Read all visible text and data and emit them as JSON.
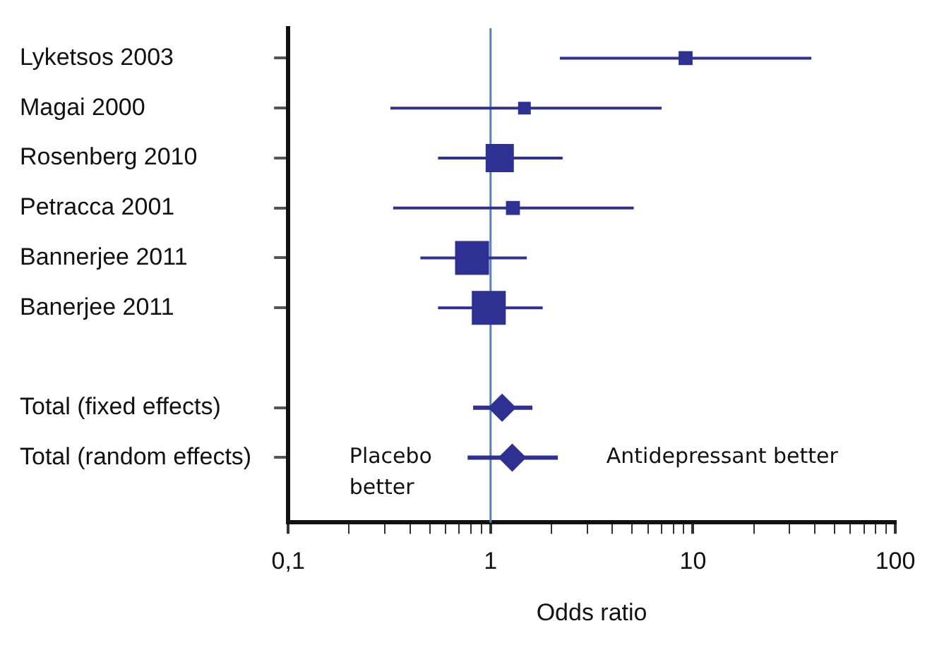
{
  "chart_data": {
    "type": "scatter",
    "orientation": "horizontal",
    "xlabel": "Odds ratio",
    "log": "x",
    "grid": false,
    "legend": false,
    "categories": [
      "Lyketsos 2003",
      "Magai 2000",
      "Rosenberg 2010",
      "Petracca 2001",
      "Bannerjee 2011",
      "Banerjee 2011",
      null,
      "Total (fixed effects)",
      "Total (random effects)"
    ],
    "xlim": [
      0.1,
      100
    ],
    "xticks": [
      {
        "value": 0.1,
        "label": "0,1"
      },
      {
        "value": 0.2,
        "label": null
      },
      {
        "value": 0.3,
        "label": null
      },
      {
        "value": 0.4,
        "label": null
      },
      {
        "value": 0.5,
        "label": null
      },
      {
        "value": 0.6,
        "label": null
      },
      {
        "value": 0.7,
        "label": null
      },
      {
        "value": 0.8,
        "label": null
      },
      {
        "value": 0.9,
        "label": null
      },
      1,
      {
        "value": 2,
        "label": null
      },
      {
        "value": 3,
        "label": null
      },
      {
        "value": 4,
        "label": null
      },
      {
        "value": 5,
        "label": null
      },
      {
        "value": 6,
        "label": null
      },
      {
        "value": 7,
        "label": null
      },
      {
        "value": 8,
        "label": null
      },
      {
        "value": 9,
        "label": null
      },
      10,
      {
        "value": 20,
        "label": null
      },
      {
        "value": 30,
        "label": null
      },
      {
        "value": 40,
        "label": null
      },
      {
        "value": 50,
        "label": null
      },
      {
        "value": 60,
        "label": null
      },
      {
        "value": 70,
        "label": null
      },
      {
        "value": 80,
        "label": null
      },
      {
        "value": 90,
        "label": null
      },
      100
    ],
    "ref_lines": [
      {
        "axis": "x",
        "value": 1,
        "color": "#5b7fc0"
      }
    ],
    "annotations": [
      "Placebo better",
      "Antidepressant better"
    ],
    "series": [
      {
        "marker": "square",
        "color": "#2e3192",
        "values": [
          9.2,
          1.47,
          1.11,
          1.29,
          0.81,
          0.98,
          null,
          null,
          null
        ],
        "errors": [
          [
            2.2,
            38.5
          ],
          [
            0.32,
            7.0
          ],
          [
            0.55,
            2.27
          ],
          [
            0.33,
            5.1
          ],
          [
            0.45,
            1.51
          ],
          [
            0.55,
            1.81
          ],
          null,
          null,
          null
        ],
        "sizes": [
          0.17,
          0.14,
          0.69,
          0.17,
          1,
          1,
          null,
          null,
          null
        ]
      },
      {
        "marker": "diamond",
        "color": "#2e3192",
        "values": [
          null,
          null,
          null,
          null,
          null,
          null,
          null,
          1.14,
          1.28
        ],
        "errors": [
          null,
          null,
          null,
          null,
          null,
          null,
          null,
          [
            0.82,
            1.61
          ],
          [
            0.77,
            2.15
          ]
        ]
      }
    ]
  }
}
